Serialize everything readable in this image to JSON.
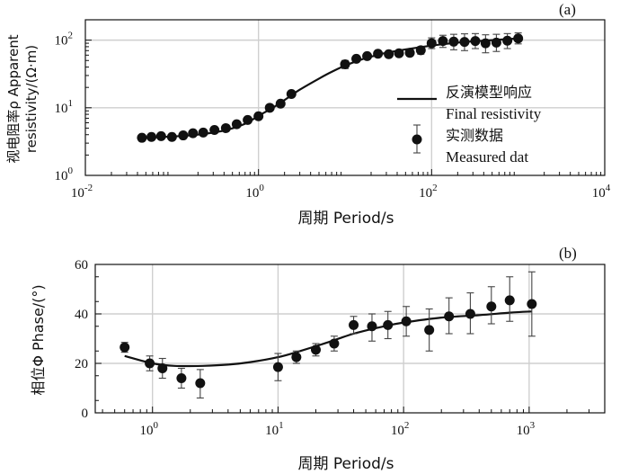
{
  "chart_data": [
    {
      "id": "a",
      "type": "scatter",
      "panel_label": "(a)",
      "xlabel": "周期 Period/s",
      "ylabel": "视电阻率ρ Apparent resistivity/(Ω·m)",
      "ylabel_line1": "视电阻率ρ Apparent",
      "ylabel_line2": "resistivity/(Ω·m)",
      "x_scale": "log",
      "y_scale": "log",
      "xlim": [
        0.01,
        10000
      ],
      "ylim": [
        1,
        200
      ],
      "x_ticks": [
        {
          "value": 0.01,
          "base": "10",
          "exp": "-2"
        },
        {
          "value": 1,
          "base": "10",
          "exp": "0"
        },
        {
          "value": 100,
          "base": "10",
          "exp": "2"
        },
        {
          "value": 10000,
          "base": "10",
          "exp": "4"
        }
      ],
      "y_ticks": [
        {
          "value": 1,
          "base": "10",
          "exp": "0"
        },
        {
          "value": 10,
          "base": "10",
          "exp": "1"
        },
        {
          "value": 100,
          "base": "10",
          "exp": "2"
        }
      ],
      "grid": true,
      "legend": {
        "placement": "center-right",
        "entries": [
          {
            "line1": "反演模型响应",
            "line2": "Final resistivity",
            "marker": "line"
          },
          {
            "line1": "实测数据",
            "line2": "Measured dat",
            "marker": "point-errorbar"
          }
        ]
      },
      "series": [
        {
          "kind": "points",
          "x": [
            0.045,
            0.058,
            0.075,
            0.1,
            0.135,
            0.175,
            0.23,
            0.31,
            0.42,
            0.56,
            0.75,
            1.0,
            1.35,
            1.8,
            2.4,
            10.0,
            13.5,
            18.0,
            24.0,
            32.0,
            42.0,
            56.0,
            75.0,
            100.0,
            135.0,
            180.0,
            240.0,
            320.0,
            420.0,
            560.0,
            750.0,
            1000.0
          ],
          "y": [
            3.6,
            3.7,
            3.8,
            3.7,
            3.9,
            4.2,
            4.3,
            4.7,
            5.0,
            5.7,
            6.6,
            7.5,
            10.0,
            11.5,
            16.0,
            44.0,
            53.0,
            58.0,
            63.0,
            62.0,
            64.0,
            65.0,
            71.0,
            90.0,
            97.0,
            95.0,
            94.0,
            97.0,
            90.0,
            92.0,
            98.0,
            106.0
          ],
          "err_low": [
            3.5,
            3.6,
            3.7,
            3.6,
            3.8,
            4.1,
            4.2,
            4.6,
            4.9,
            5.6,
            6.4,
            7.3,
            9.5,
            10.8,
            14.5,
            38.0,
            48.0,
            53.0,
            58.0,
            56.0,
            58.0,
            58.0,
            62.0,
            75.0,
            78.0,
            72.0,
            70.0,
            75.0,
            65.0,
            68.0,
            75.0,
            88.0
          ],
          "err_high": [
            3.7,
            3.8,
            3.9,
            3.8,
            4.0,
            4.3,
            4.4,
            4.8,
            5.1,
            5.8,
            6.8,
            7.7,
            10.5,
            12.2,
            17.5,
            50.0,
            58.0,
            63.0,
            68.0,
            68.0,
            70.0,
            72.0,
            80.0,
            108.0,
            118.0,
            122.0,
            124.0,
            125.0,
            120.0,
            122.0,
            125.0,
            128.0
          ]
        },
        {
          "kind": "line",
          "x": [
            0.045,
            0.1,
            0.2,
            0.4,
            0.7,
            1.0,
            1.5,
            2.0,
            3.0,
            5.0,
            7.0,
            10.0,
            15.0,
            20.0,
            30.0,
            50.0,
            100.0,
            200.0,
            500.0,
            1000.0
          ],
          "y": [
            3.6,
            3.75,
            4.0,
            4.6,
            5.8,
            7.6,
            10.2,
            13.0,
            18.5,
            27.0,
            34.0,
            42.0,
            51.0,
            57.0,
            65.0,
            73.0,
            83.0,
            92.0,
            100.0,
            106.0
          ]
        }
      ]
    },
    {
      "id": "b",
      "type": "scatter",
      "panel_label": "(b)",
      "xlabel": "周期 Period/s",
      "ylabel": "相位Φ Phase/(°)",
      "x_scale": "log",
      "y_scale": "linear",
      "xlim": [
        0.35,
        4000
      ],
      "ylim": [
        0,
        60
      ],
      "x_ticks": [
        {
          "value": 1,
          "base": "10",
          "exp": "0"
        },
        {
          "value": 10,
          "base": "10",
          "exp": "1"
        },
        {
          "value": 100,
          "base": "10",
          "exp": "2"
        },
        {
          "value": 1000,
          "base": "10",
          "exp": "3"
        }
      ],
      "y_ticks": [
        0,
        20,
        40,
        60
      ],
      "grid": true,
      "series": [
        {
          "kind": "points",
          "x": [
            0.6,
            0.95,
            1.2,
            1.7,
            2.4,
            10.0,
            14.0,
            20.0,
            28.0,
            40.0,
            56.0,
            75.0,
            105.0,
            160.0,
            230.0,
            340.0,
            500.0,
            700.0,
            1050.0
          ],
          "y": [
            26.5,
            20.0,
            18.0,
            14.0,
            12.0,
            18.5,
            22.5,
            25.5,
            28.0,
            35.5,
            35.0,
            35.5,
            37.0,
            33.5,
            39.0,
            40.0,
            43.0,
            45.5,
            44.0
          ],
          "err_low": [
            24.5,
            17.0,
            14.0,
            10.0,
            6.0,
            13.0,
            20.0,
            23.0,
            25.0,
            32.0,
            29.0,
            30.0,
            31.0,
            25.0,
            32.0,
            32.0,
            36.0,
            37.0,
            31.0
          ],
          "err_high": [
            28.5,
            23.0,
            22.0,
            18.0,
            17.5,
            24.0,
            25.0,
            28.0,
            31.0,
            39.0,
            40.0,
            41.0,
            43.0,
            42.0,
            46.5,
            48.5,
            51.0,
            55.0,
            57.0
          ]
        },
        {
          "kind": "line",
          "x": [
            0.6,
            1.0,
            1.5,
            2.5,
            4.0,
            6.0,
            10.0,
            15.0,
            25.0,
            40.0,
            70.0,
            100.0,
            200.0,
            400.0,
            700.0,
            1050.0
          ],
          "y": [
            23.0,
            20.0,
            19.0,
            19.0,
            19.5,
            20.5,
            22.5,
            25.0,
            28.5,
            32.0,
            35.0,
            36.5,
            38.5,
            39.5,
            40.5,
            41.0
          ]
        }
      ]
    }
  ]
}
